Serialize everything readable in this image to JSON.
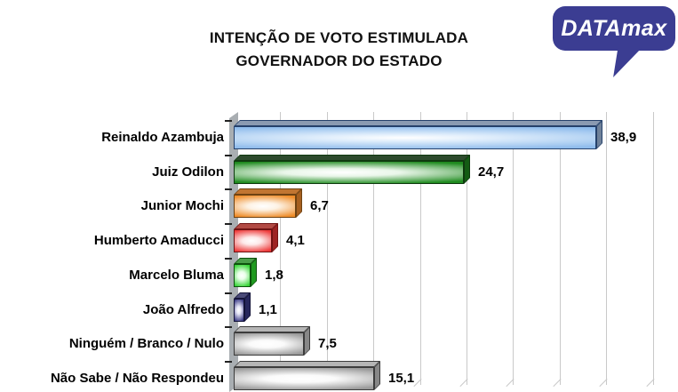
{
  "header": {
    "title_line1": "INTENÇÃO DE VOTO ESTIMULADA",
    "title_line2": "GOVERNADOR DO ESTADO",
    "logo_text": "DATAmax",
    "logo_color": "#3b3d92"
  },
  "chart_data": {
    "type": "bar",
    "orientation": "horizontal",
    "style": "3d-glossy",
    "title": "INTENÇÃO DE VOTO ESTIMULADA GOVERNADOR DO ESTADO",
    "series_name": "Intenção de voto (%)",
    "categories": [
      "Reinaldo Azambuja",
      "Juiz Odilon",
      "Junior Mochi",
      "Humberto Amaducci",
      "Marcelo Bluma",
      "João Alfredo",
      "Ninguém / Branco / Nulo",
      "Não Sabe / Não Respondeu"
    ],
    "values": [
      38.9,
      24.7,
      6.7,
      4.1,
      1.8,
      1.1,
      7.5,
      15.1
    ],
    "value_labels": [
      "38,9",
      "24,7",
      "6,7",
      "4,1",
      "1,8",
      "1,1",
      "7,5",
      "15,1"
    ],
    "xlim": [
      0,
      45
    ],
    "gridline_step": 5,
    "grid": true,
    "axis_tick_labels_shown": false,
    "legend": "none",
    "bar_colors": [
      {
        "name": "light-blue",
        "edge": "#8fbcec",
        "sheen": "#ddecfb",
        "top": "#8a9ab1",
        "side": "#6f8199",
        "outline": "#25416b"
      },
      {
        "name": "green",
        "edge": "#1e8a1e",
        "sheen": "#e9f6e9",
        "top": "#2d4a2d",
        "side": "#145c14",
        "outline": "#0f3a0f"
      },
      {
        "name": "orange",
        "edge": "#ef8c28",
        "sheen": "#fdf2e4",
        "top": "#c17531",
        "side": "#a65f1f",
        "outline": "#6e4212"
      },
      {
        "name": "red",
        "edge": "#ee3a3a",
        "sheen": "#fdeaea",
        "top": "#b24a44",
        "side": "#9e2424",
        "outline": "#701414"
      },
      {
        "name": "bright-green",
        "edge": "#35d435",
        "sheen": "#eaffea",
        "top": "#4a9e4a",
        "side": "#1f9a1f",
        "outline": "#0d520d"
      },
      {
        "name": "navy",
        "edge": "#3c3c86",
        "sheen": "#e6e6f6",
        "top": "#4a4a78",
        "side": "#26265c",
        "outline": "#131338"
      },
      {
        "name": "gray",
        "edge": "#9a9a9a",
        "sheen": "#fafafa",
        "top": "#b5b5b5",
        "side": "#878787",
        "outline": "#3c3c3c"
      },
      {
        "name": "gray",
        "edge": "#9a9a9a",
        "sheen": "#fafafa",
        "top": "#b5b5b5",
        "side": "#878787",
        "outline": "#3c3c3c"
      }
    ]
  }
}
